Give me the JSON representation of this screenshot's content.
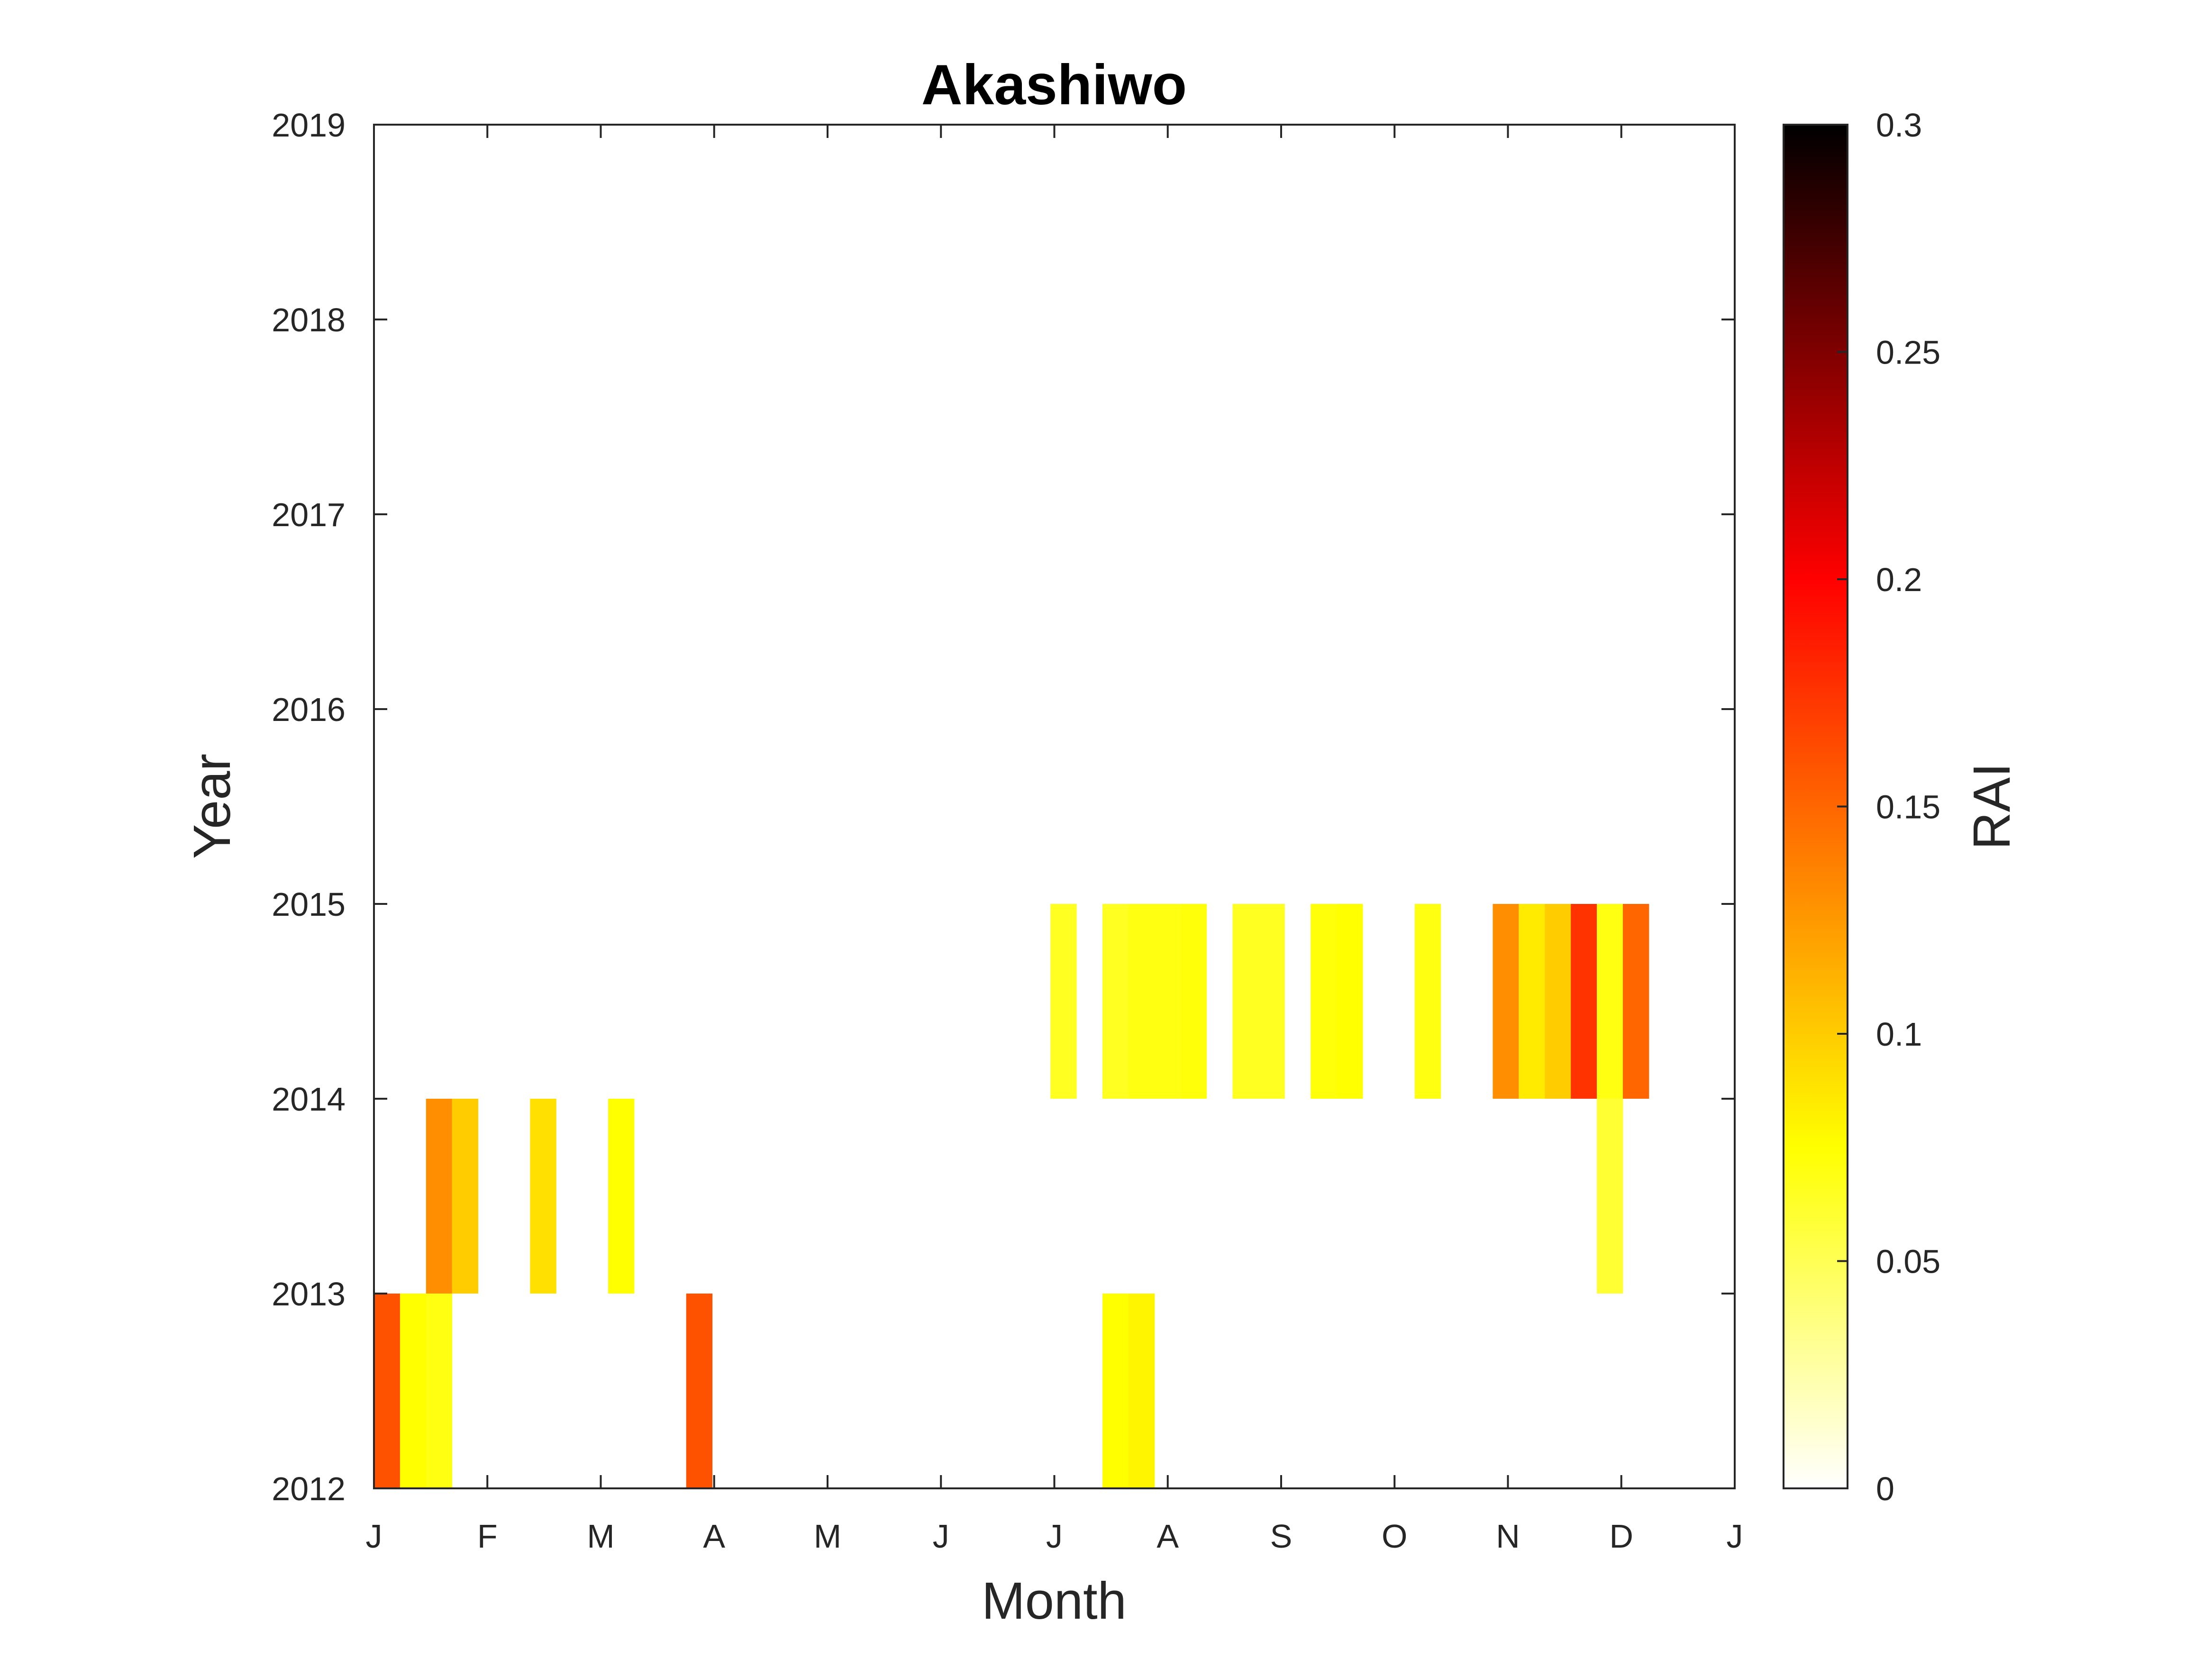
{
  "chart_data": {
    "type": "heatmap",
    "title": "Akashiwo",
    "xlabel": "Month",
    "ylabel": "Year",
    "colorbar_label": "RAI",
    "x_tick_labels": [
      "J",
      "F",
      "M",
      "A",
      "M",
      "J",
      "J",
      "A",
      "S",
      "O",
      "N",
      "D",
      "J"
    ],
    "y_ticks": [
      2012,
      2013,
      2014,
      2015,
      2016,
      2017,
      2018,
      2019
    ],
    "ylim": [
      2012,
      2019
    ],
    "xlim_weeks": [
      0,
      52.3
    ],
    "colorbar_ticks": [
      0,
      0.05,
      0.1,
      0.15,
      0.2,
      0.25,
      0.3
    ],
    "colorbar_tick_labels": [
      "0",
      "0.05",
      "0.1",
      "0.15",
      "0.2",
      "0.25",
      "0.3"
    ],
    "clim": [
      0,
      0.3
    ],
    "colormap": "hot-reversed",
    "cells": [
      {
        "year": 2012,
        "week": 0,
        "value": 0.16
      },
      {
        "year": 2012,
        "week": 1,
        "value": 0.075
      },
      {
        "year": 2012,
        "week": 2,
        "value": 0.07
      },
      {
        "year": 2012,
        "week": 12,
        "value": 0.16
      },
      {
        "year": 2012,
        "week": 28,
        "value": 0.075
      },
      {
        "year": 2012,
        "week": 29,
        "value": 0.08
      },
      {
        "year": 2013,
        "week": 2,
        "value": 0.13
      },
      {
        "year": 2013,
        "week": 3,
        "value": 0.1
      },
      {
        "year": 2013,
        "week": 6,
        "value": 0.09
      },
      {
        "year": 2013,
        "week": 9,
        "value": 0.075
      },
      {
        "year": 2013,
        "week": 47,
        "value": 0.06
      },
      {
        "year": 2014,
        "week": 26,
        "value": 0.065
      },
      {
        "year": 2014,
        "week": 28,
        "value": 0.065
      },
      {
        "year": 2014,
        "week": 29,
        "value": 0.07
      },
      {
        "year": 2014,
        "week": 30,
        "value": 0.07
      },
      {
        "year": 2014,
        "week": 31,
        "value": 0.072
      },
      {
        "year": 2014,
        "week": 33,
        "value": 0.065
      },
      {
        "year": 2014,
        "week": 34,
        "value": 0.065
      },
      {
        "year": 2014,
        "week": 36,
        "value": 0.072
      },
      {
        "year": 2014,
        "week": 37,
        "value": 0.075
      },
      {
        "year": 2014,
        "week": 40,
        "value": 0.07
      },
      {
        "year": 2014,
        "week": 43,
        "value": 0.13
      },
      {
        "year": 2014,
        "week": 44,
        "value": 0.085
      },
      {
        "year": 2014,
        "week": 45,
        "value": 0.1
      },
      {
        "year": 2014,
        "week": 46,
        "value": 0.175
      },
      {
        "year": 2014,
        "week": 47,
        "value": 0.07
      },
      {
        "year": 2014,
        "week": 48,
        "value": 0.15
      }
    ]
  }
}
